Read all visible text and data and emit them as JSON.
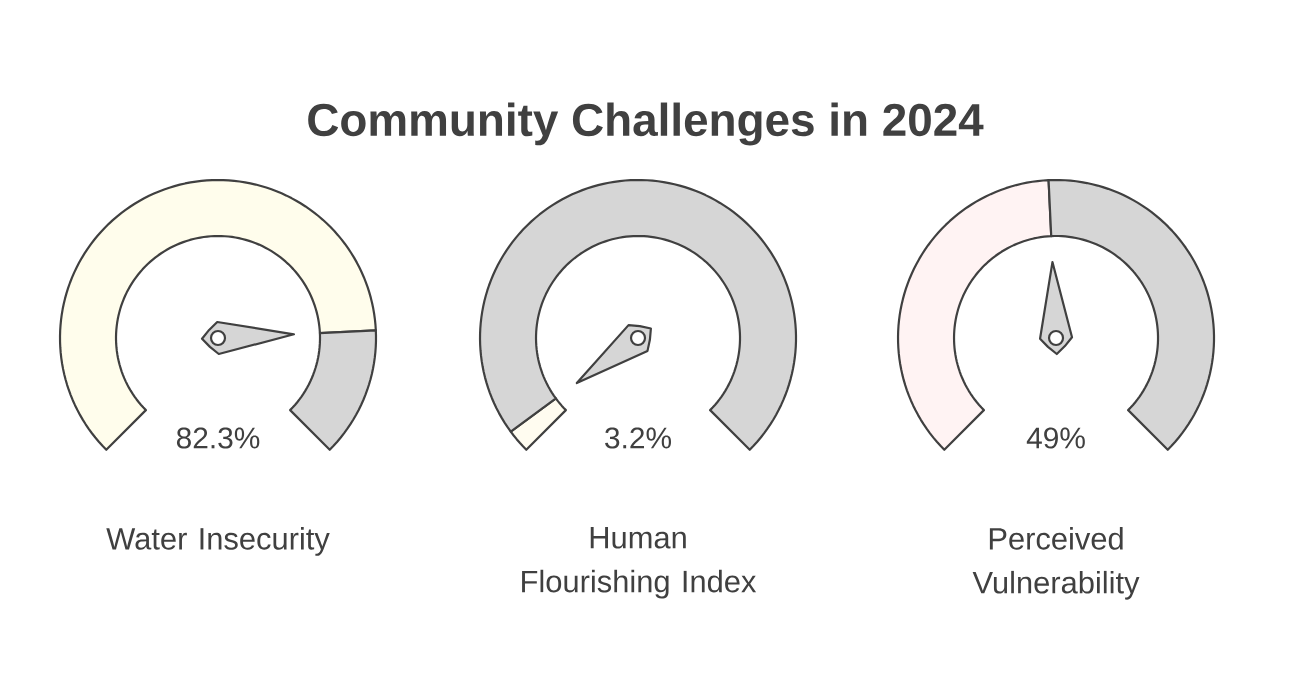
{
  "chart_data": [
    {
      "type": "donut",
      "title": "Community Challenges in 2024",
      "xlabel": "Water Insecurity",
      "categories": [
        null,
        null
      ],
      "values": [
        82.3,
        17.7
      ],
      "colors": [
        "#fffdec",
        "#d6d6d6"
      ],
      "annotations": [
        "82.3%"
      ]
    },
    {
      "type": "donut",
      "xlabel": "Human Flourishing Index",
      "categories": [
        null,
        null
      ],
      "values": [
        3.2,
        96.8
      ],
      "colors": [
        "#fffcf0",
        "#d6d6d6"
      ],
      "annotations": [
        "3.2%"
      ]
    },
    {
      "type": "donut",
      "xlabel": "Perceived Vulnerability",
      "categories": [
        null,
        null
      ],
      "values": [
        49,
        51
      ],
      "colors": [
        "#fff3f3",
        "#d6d6d6"
      ],
      "annotations": [
        "49%"
      ]
    }
  ]
}
